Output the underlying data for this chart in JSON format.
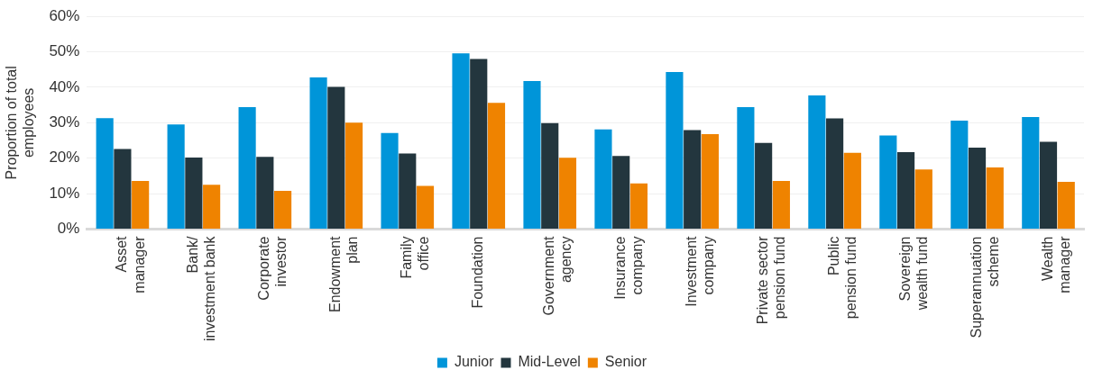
{
  "chart_data": {
    "type": "bar",
    "ylabel": "Proportion of total\nemployees",
    "categories": [
      "Asset\nmanager",
      "Bank/\ninvestment bank",
      "Corporate\ninvestor",
      "Endowment\nplan",
      "Family\noffice",
      "Foundation",
      "Government\nagency",
      "Insurance\ncompany",
      "Investment\ncompany",
      "Private sector\npension fund",
      "Public\npension fund",
      "Sovereign\nwealth fund",
      "Superannuation\nscheme",
      "Wealth\nmanager"
    ],
    "series": [
      {
        "name": "Junior",
        "color": "#0095d9",
        "values": [
          31.3,
          29.5,
          34.4,
          42.8,
          27.1,
          49.6,
          41.8,
          28.1,
          44.3,
          34.4,
          37.7,
          26.4,
          30.6,
          31.6
        ]
      },
      {
        "name": "Mid-Level",
        "color": "#23363e",
        "values": [
          22.6,
          20.2,
          20.4,
          40.1,
          21.3,
          48.0,
          29.9,
          20.6,
          27.9,
          24.3,
          31.2,
          21.7,
          23.0,
          24.6
        ]
      },
      {
        "name": "Senior",
        "color": "#ef8300",
        "values": [
          13.6,
          12.5,
          10.8,
          30.0,
          12.2,
          35.6,
          20.1,
          12.9,
          26.8,
          13.6,
          21.5,
          16.8,
          17.4,
          13.3
        ]
      }
    ],
    "ylim": [
      0,
      60
    ],
    "yticks": [
      {
        "value": 0,
        "label": "0%"
      },
      {
        "value": 10,
        "label": "10%"
      },
      {
        "value": 20,
        "label": "20%"
      },
      {
        "value": 30,
        "label": "30%"
      },
      {
        "value": 40,
        "label": "40%"
      },
      {
        "value": 50,
        "label": "50%"
      },
      {
        "value": 60,
        "label": "60%"
      }
    ],
    "grid": "y",
    "legend": "bottom"
  }
}
